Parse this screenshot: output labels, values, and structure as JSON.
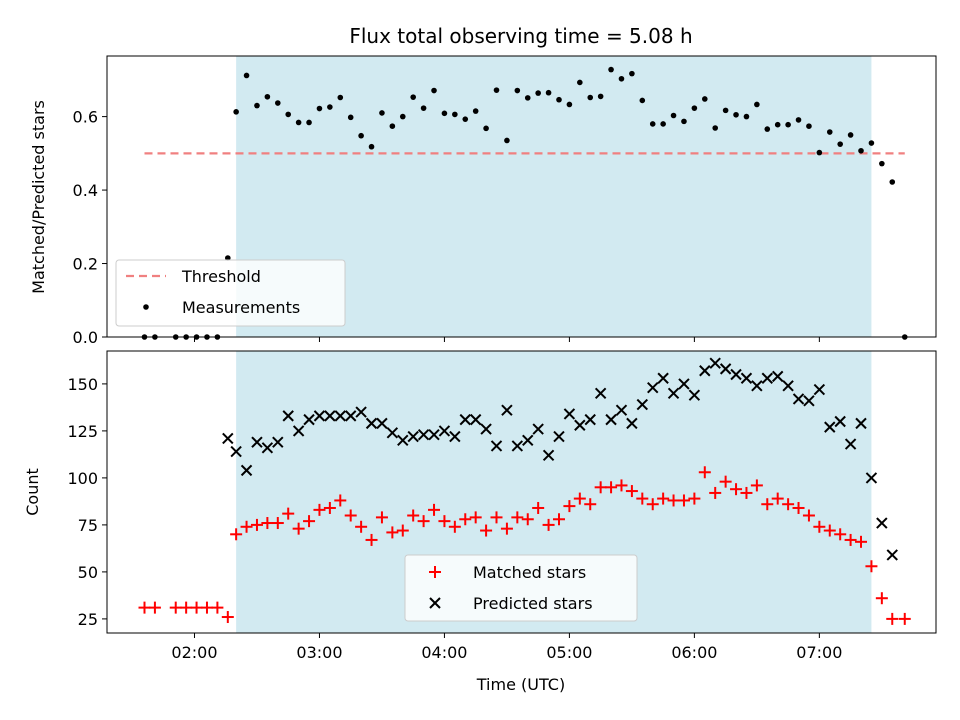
{
  "chart_data": [
    {
      "type": "scatter",
      "title": "Flux total observing time = 5.08 h",
      "xlabel": "",
      "ylabel": "Matched/Predicted stars",
      "xlim": [
        "01:18",
        "07:56"
      ],
      "ylim": [
        0,
        0.765
      ],
      "yticks": [
        0.0,
        0.2,
        0.4,
        0.6
      ],
      "ytick_labels": [
        "0.0",
        "0.2",
        "0.4",
        "0.6"
      ],
      "shaded_span": [
        "02:20",
        "07:25"
      ],
      "shade_color": "#add8e6",
      "legend_position": "lower-left",
      "threshold": {
        "name": "Threshold",
        "value": 0.5,
        "x_range": [
          "01:36",
          "07:41"
        ],
        "color": "#f08080",
        "style": "dashed"
      },
      "series": [
        {
          "name": "Measurements",
          "marker": "dot",
          "color": "#000000",
          "x": [
            "01:36",
            "01:41",
            "01:51",
            "01:56",
            "02:01",
            "02:06",
            "02:11",
            "02:16",
            "02:20",
            "02:25",
            "02:30",
            "02:35",
            "02:40",
            "02:45",
            "02:50",
            "02:55",
            "03:00",
            "03:05",
            "03:10",
            "03:15",
            "03:20",
            "03:25",
            "03:30",
            "03:35",
            "03:40",
            "03:45",
            "03:50",
            "03:55",
            "04:00",
            "04:05",
            "04:10",
            "04:15",
            "04:20",
            "04:25",
            "04:30",
            "04:35",
            "04:40",
            "04:45",
            "04:50",
            "04:55",
            "05:00",
            "05:05",
            "05:10",
            "05:15",
            "05:20",
            "05:25",
            "05:30",
            "05:35",
            "05:40",
            "05:45",
            "05:50",
            "05:55",
            "06:00",
            "06:05",
            "06:10",
            "06:15",
            "06:20",
            "06:25",
            "06:30",
            "06:35",
            "06:40",
            "06:45",
            "06:50",
            "06:55",
            "07:00",
            "07:05",
            "07:10",
            "07:15",
            "07:20",
            "07:25",
            "07:30",
            "07:35",
            "07:41"
          ],
          "y": [
            0.0,
            0.0,
            0.0,
            0.0,
            0.0,
            0.0,
            0.0,
            0.215,
            0.613,
            0.712,
            0.63,
            0.654,
            0.637,
            0.606,
            0.584,
            0.584,
            0.622,
            0.626,
            0.652,
            0.598,
            0.548,
            0.518,
            0.61,
            0.574,
            0.6,
            0.653,
            0.623,
            0.671,
            0.609,
            0.606,
            0.593,
            0.615,
            0.568,
            0.672,
            0.535,
            0.671,
            0.651,
            0.664,
            0.665,
            0.646,
            0.633,
            0.693,
            0.652,
            0.655,
            0.728,
            0.703,
            0.717,
            0.644,
            0.58,
            0.58,
            0.603,
            0.587,
            0.623,
            0.648,
            0.569,
            0.617,
            0.605,
            0.6,
            0.633,
            0.566,
            0.578,
            0.578,
            0.591,
            0.574,
            0.502,
            0.558,
            0.525,
            0.55,
            0.507,
            0.528,
            0.472,
            0.422,
            0.0
          ]
        }
      ]
    },
    {
      "type": "scatter",
      "title": "",
      "xlabel": "Time (UTC)",
      "ylabel": "Count",
      "xlim": [
        "01:18",
        "07:56"
      ],
      "ylim": [
        17.5,
        167.5
      ],
      "yticks": [
        25,
        50,
        75,
        100,
        125,
        150
      ],
      "ytick_labels": [
        "25",
        "50",
        "75",
        "100",
        "125",
        "150"
      ],
      "xticks": [
        "02:00",
        "03:00",
        "04:00",
        "05:00",
        "06:00",
        "07:00"
      ],
      "shaded_span": [
        "02:20",
        "07:25"
      ],
      "shade_color": "#add8e6",
      "legend_position": "lower-center",
      "series": [
        {
          "name": "Matched stars",
          "marker": "plus",
          "color": "#ff0000",
          "x": [
            "01:36",
            "01:41",
            "01:51",
            "01:56",
            "02:01",
            "02:06",
            "02:11",
            "02:16",
            "02:20",
            "02:25",
            "02:30",
            "02:35",
            "02:40",
            "02:45",
            "02:50",
            "02:55",
            "03:00",
            "03:05",
            "03:10",
            "03:15",
            "03:20",
            "03:25",
            "03:30",
            "03:35",
            "03:40",
            "03:45",
            "03:50",
            "03:55",
            "04:00",
            "04:05",
            "04:10",
            "04:15",
            "04:20",
            "04:25",
            "04:30",
            "04:35",
            "04:40",
            "04:45",
            "04:50",
            "04:55",
            "05:00",
            "05:05",
            "05:10",
            "05:15",
            "05:20",
            "05:25",
            "05:30",
            "05:35",
            "05:40",
            "05:45",
            "05:50",
            "05:55",
            "06:00",
            "06:05",
            "06:10",
            "06:15",
            "06:20",
            "06:25",
            "06:30",
            "06:35",
            "06:40",
            "06:45",
            "06:50",
            "06:55",
            "07:00",
            "07:05",
            "07:10",
            "07:15",
            "07:20",
            "07:25",
            "07:30",
            "07:35",
            "07:41"
          ],
          "y": [
            31,
            31,
            31,
            31,
            31,
            31,
            31,
            26,
            70,
            74,
            75,
            76,
            76,
            81,
            73,
            77,
            83,
            84,
            88,
            80,
            74,
            67,
            79,
            71,
            72,
            80,
            77,
            83,
            77,
            74,
            78,
            79,
            72,
            79,
            73,
            79,
            78,
            84,
            75,
            78,
            85,
            89,
            86,
            95,
            95,
            96,
            93,
            89,
            86,
            89,
            88,
            88,
            89,
            103,
            92,
            98,
            94,
            92,
            96,
            86,
            89,
            86,
            84,
            80,
            74,
            72,
            70,
            67,
            66,
            53,
            36,
            25,
            25
          ]
        },
        {
          "name": "Predicted stars",
          "marker": "x",
          "color": "#000000",
          "x": [
            "02:16",
            "02:20",
            "02:25",
            "02:30",
            "02:35",
            "02:40",
            "02:45",
            "02:50",
            "02:55",
            "03:00",
            "03:05",
            "03:10",
            "03:15",
            "03:20",
            "03:25",
            "03:30",
            "03:35",
            "03:40",
            "03:45",
            "03:50",
            "03:55",
            "04:00",
            "04:05",
            "04:10",
            "04:15",
            "04:20",
            "04:25",
            "04:30",
            "04:35",
            "04:40",
            "04:45",
            "04:50",
            "04:55",
            "05:00",
            "05:05",
            "05:10",
            "05:15",
            "05:20",
            "05:25",
            "05:30",
            "05:35",
            "05:40",
            "05:45",
            "05:50",
            "05:55",
            "06:00",
            "06:05",
            "06:10",
            "06:15",
            "06:20",
            "06:25",
            "06:30",
            "06:35",
            "06:40",
            "06:45",
            "06:50",
            "06:55",
            "07:00",
            "07:05",
            "07:10",
            "07:15",
            "07:20",
            "07:25",
            "07:30",
            "07:35"
          ],
          "y": [
            121,
            114,
            104,
            119,
            116,
            119,
            133,
            125,
            131,
            133,
            133,
            133,
            133,
            135,
            129,
            129,
            124,
            120,
            122,
            123,
            123,
            125,
            122,
            131,
            131,
            126,
            117,
            136,
            117,
            120,
            126,
            112,
            122,
            134,
            128,
            131,
            145,
            131,
            136,
            129,
            139,
            148,
            153,
            145,
            150,
            144,
            157,
            161,
            158,
            155,
            153,
            149,
            153,
            154,
            149,
            142,
            141,
            147,
            127,
            130,
            118,
            129,
            100,
            76,
            59
          ]
        }
      ]
    }
  ]
}
